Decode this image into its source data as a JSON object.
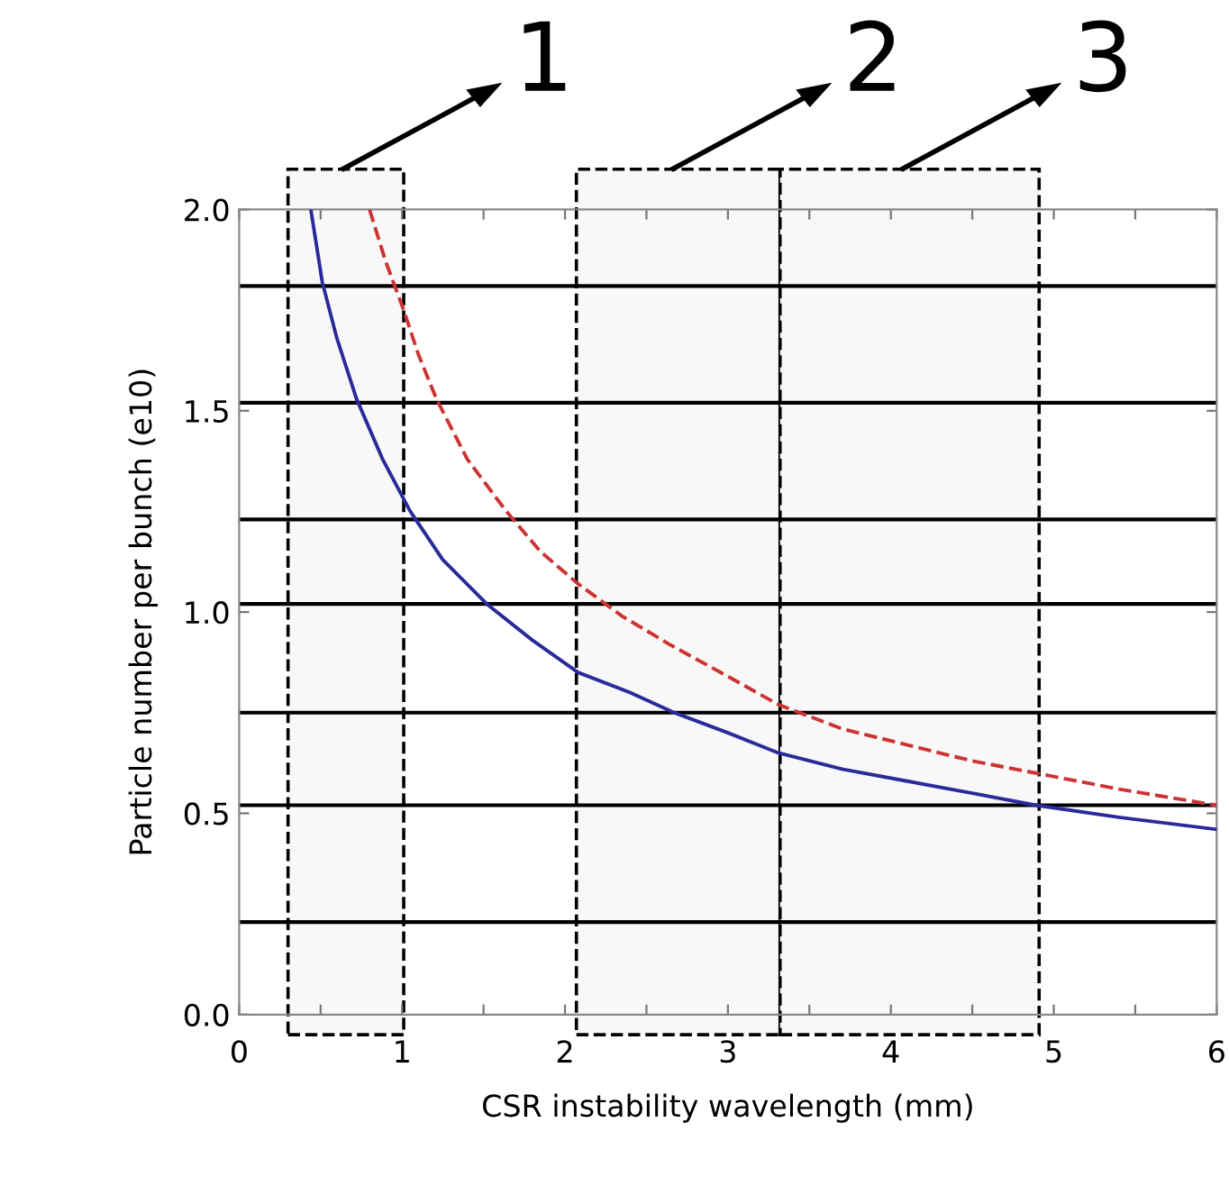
{
  "chart_data": {
    "type": "line",
    "xlabel": "CSR instability wavelength (mm)",
    "ylabel": "Particle number per bunch (e10)",
    "series": [
      {
        "color": "#2a2a9a",
        "line_style": "solid",
        "x": [
          0.44,
          0.51,
          0.6,
          0.72,
          0.88,
          1.05,
          1.25,
          1.52,
          1.8,
          2.08,
          2.4,
          2.67,
          3.0,
          3.31,
          3.7,
          4.1,
          4.5,
          4.89,
          5.4,
          6.0
        ],
        "values": [
          2.0,
          1.82,
          1.68,
          1.53,
          1.38,
          1.25,
          1.13,
          1.02,
          0.93,
          0.85,
          0.8,
          0.75,
          0.7,
          0.65,
          0.61,
          0.58,
          0.55,
          0.52,
          0.49,
          0.46
        ]
      },
      {
        "color": "#cc3333",
        "line_style": "dashed",
        "x": [
          0.8,
          0.9,
          1.01,
          1.1,
          1.21,
          1.4,
          1.64,
          1.85,
          2.08,
          2.35,
          2.64,
          3.0,
          3.31,
          3.7,
          4.1,
          4.5,
          4.89,
          5.4,
          6.0
        ],
        "values": [
          2.0,
          1.87,
          1.75,
          1.64,
          1.53,
          1.38,
          1.25,
          1.15,
          1.07,
          0.99,
          0.92,
          0.84,
          0.77,
          0.71,
          0.67,
          0.63,
          0.6,
          0.56,
          0.52
        ]
      }
    ],
    "xlim": [
      0,
      6
    ],
    "ylim": [
      0,
      2
    ],
    "xticks": [
      0,
      {
        "value": 0.5,
        "label": null
      },
      1,
      {
        "value": 1.5,
        "label": null
      },
      2,
      {
        "value": 2.5,
        "label": null
      },
      3,
      {
        "value": 3.5,
        "label": null
      },
      4,
      {
        "value": 4.5,
        "label": null
      },
      5,
      {
        "value": 5.5,
        "label": null
      },
      6
    ],
    "yticks": [
      {
        "value": 0,
        "label": "0.0"
      },
      {
        "value": 0.5,
        "label": "0.5"
      },
      {
        "value": 1,
        "label": "1.0"
      },
      {
        "value": 1.5,
        "label": "1.5"
      },
      {
        "value": 2,
        "label": "2.0"
      }
    ],
    "ref_lines": [
      {
        "axis": "y",
        "value": 0.23,
        "color": "#000000"
      },
      {
        "axis": "y",
        "value": 0.52,
        "color": "#000000"
      },
      {
        "axis": "y",
        "value": 0.75,
        "color": "#000000"
      },
      {
        "axis": "y",
        "value": 1.02,
        "color": "#000000"
      },
      {
        "axis": "y",
        "value": 1.23,
        "color": "#000000"
      },
      {
        "axis": "y",
        "value": 1.52,
        "color": "#000000"
      },
      {
        "axis": "y",
        "value": 1.81,
        "color": "#000000"
      }
    ],
    "bands": [
      {
        "axis": "x",
        "from": 0.3,
        "to": 1.01,
        "label": "1",
        "color": "#f8f8f8"
      },
      {
        "axis": "x",
        "from": 2.07,
        "to": 3.32,
        "label": "2",
        "color": "#f8f8f8"
      },
      {
        "axis": "x",
        "from": 3.32,
        "to": 4.91,
        "label": "3",
        "color": "#f8f8f8"
      }
    ],
    "grid": false
  }
}
